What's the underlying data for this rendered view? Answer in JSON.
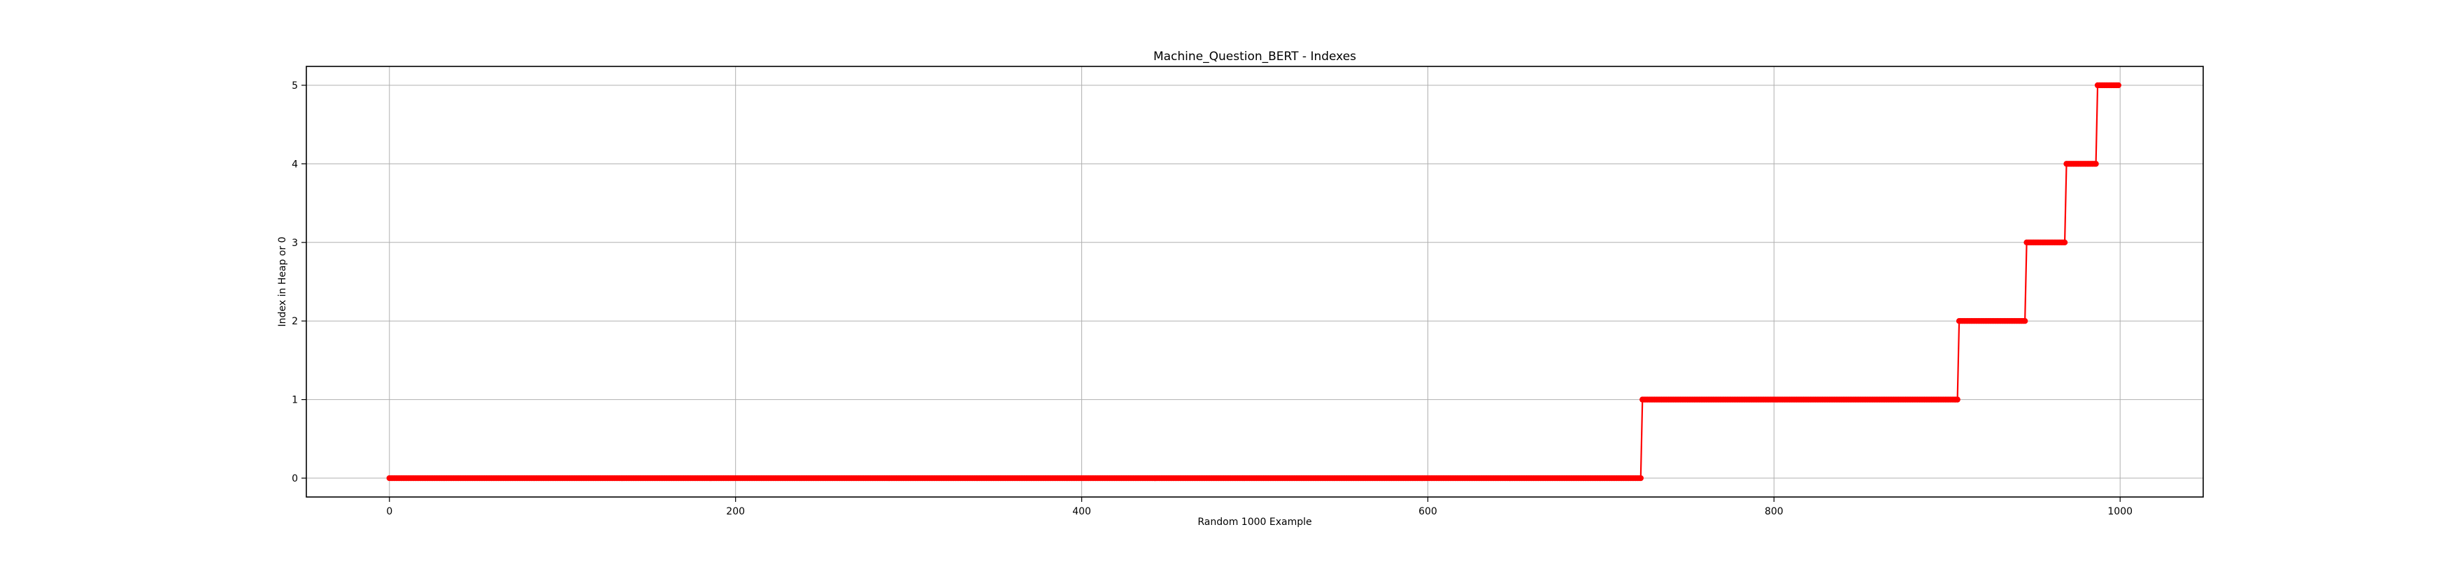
{
  "chart_data": {
    "type": "line",
    "title": "Machine_Question_BERT - Indexes",
    "xlabel": "Random 1000 Example",
    "ylabel": "Index in Heap or 0",
    "xlim": [
      -48,
      1048
    ],
    "ylim": [
      -0.24,
      5.24
    ],
    "x_ticks": [
      0,
      200,
      400,
      600,
      800,
      1000
    ],
    "y_ticks": [
      0,
      1,
      2,
      3,
      4,
      5
    ],
    "grid": true,
    "series": [
      {
        "color": "#ff0000",
        "marker": "circle",
        "segments": [
          {
            "x_start": 0,
            "x_end": 723,
            "y": 0
          },
          {
            "x_start": 724,
            "x_end": 906,
            "y": 1
          },
          {
            "x_start": 907,
            "x_end": 945,
            "y": 2
          },
          {
            "x_start": 946,
            "x_end": 968,
            "y": 3
          },
          {
            "x_start": 969,
            "x_end": 986,
            "y": 4
          },
          {
            "x_start": 987,
            "x_end": 999,
            "y": 5
          }
        ]
      }
    ]
  }
}
